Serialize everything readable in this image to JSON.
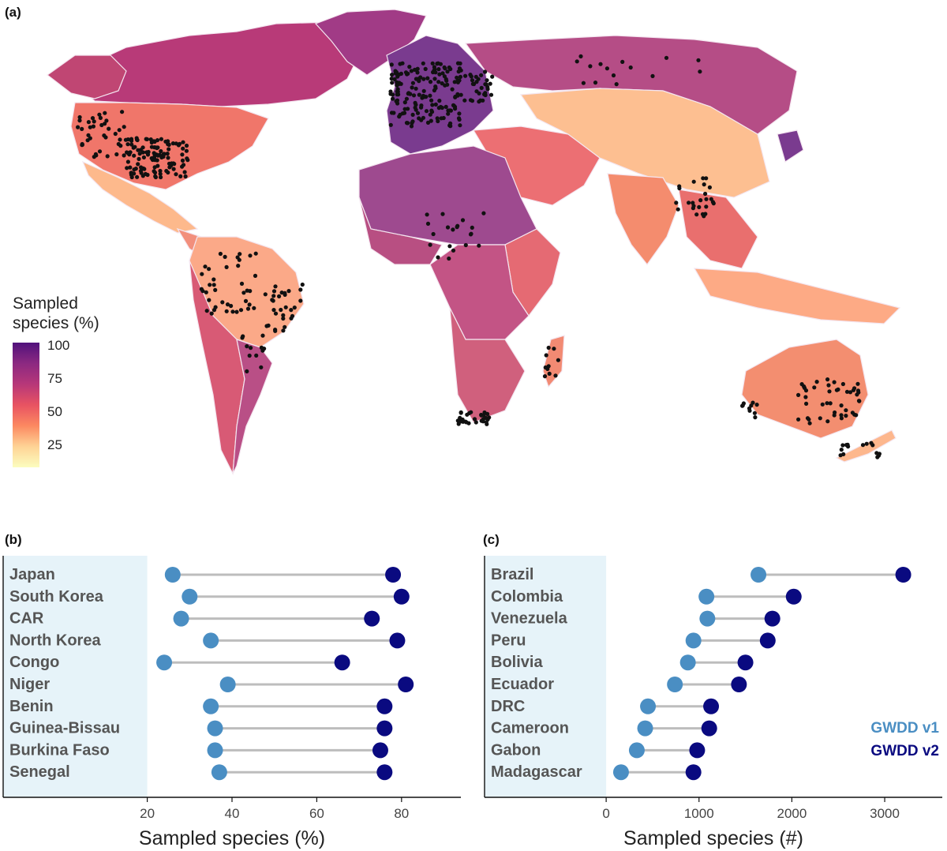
{
  "panels": {
    "a": {
      "label": "(a)"
    },
    "b": {
      "label": "(b)"
    },
    "c": {
      "label": "(c)"
    }
  },
  "map": {
    "legend": {
      "title_line1": "Sampled",
      "title_line2": "species (%)",
      "ticks": [
        "100",
        "75",
        "50",
        "25"
      ],
      "colors": [
        "#fcfdbf",
        "#fed395",
        "#fc8961",
        "#e85362",
        "#b73779",
        "#8c2981",
        "#51127c"
      ]
    }
  },
  "chart_data": [
    {
      "type": "dumbbell",
      "panel": "(b)",
      "categories": [
        "Japan",
        "South Korea",
        "CAR",
        "North Korea",
        "Congo",
        "Niger",
        "Benin",
        "Guinea-Bissau",
        "Burkina Faso",
        "Senegal"
      ],
      "series": [
        {
          "name": "GWDD v1",
          "color": "#4a8ec3",
          "values": [
            26,
            30,
            28,
            35,
            24,
            39,
            35,
            36,
            36,
            37
          ]
        },
        {
          "name": "GWDD v2",
          "color": "#0a0a80",
          "values": [
            78,
            80,
            73,
            79,
            66,
            81,
            76,
            76,
            75,
            76
          ]
        }
      ],
      "xlabel": "Sampled species (%)",
      "xticks": [
        20,
        40,
        60,
        80
      ],
      "xlim": [
        -14,
        94
      ],
      "shaded_until": 20
    },
    {
      "type": "dumbbell",
      "panel": "(c)",
      "categories": [
        "Brazil",
        "Colombia",
        "Venezuela",
        "Peru",
        "Bolivia",
        "Ecuador",
        "DRC",
        "Cameroon",
        "Gabon",
        "Madagascar"
      ],
      "series": [
        {
          "name": "GWDD v1",
          "color": "#4a8ec3",
          "values": [
            1640,
            1080,
            1090,
            940,
            880,
            740,
            450,
            420,
            330,
            160
          ]
        },
        {
          "name": "GWDD v2",
          "color": "#0a0a80",
          "values": [
            3200,
            2020,
            1790,
            1740,
            1500,
            1430,
            1130,
            1110,
            980,
            940
          ]
        }
      ],
      "xlabel": "Sampled species (#)",
      "xticks": [
        0,
        1000,
        2000,
        3000
      ],
      "xlim": [
        -1310,
        3620
      ],
      "shaded_until": 0,
      "legend": [
        "GWDD v1",
        "GWDD v2"
      ]
    }
  ]
}
